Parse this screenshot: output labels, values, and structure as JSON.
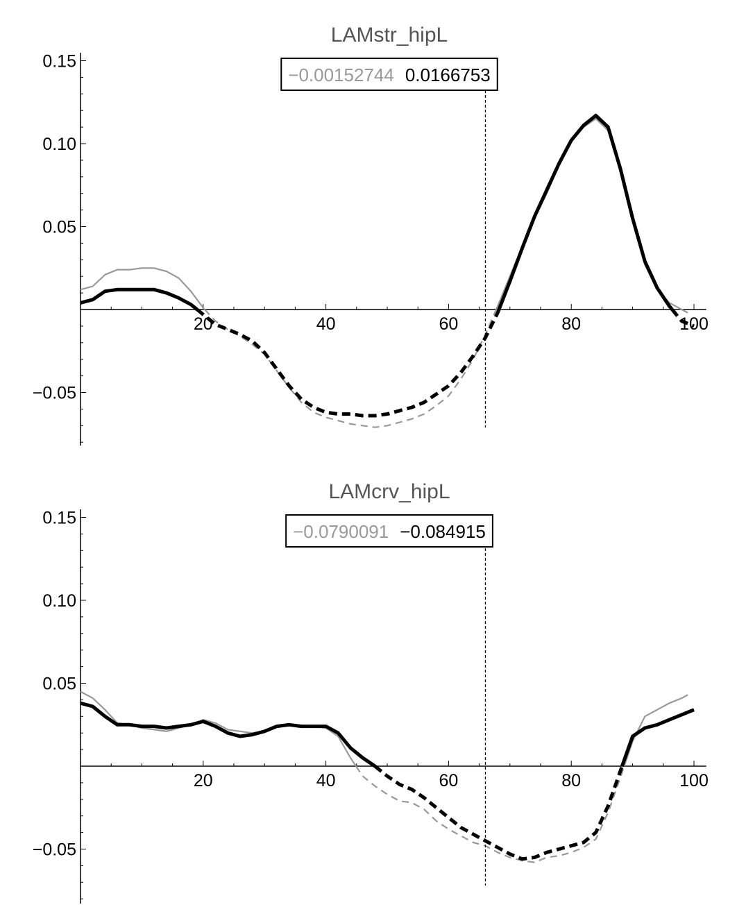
{
  "chart_data": [
    {
      "type": "line",
      "title": "LAMstr_hipL",
      "legend_box": {
        "gray_value": "−0.00152744",
        "black_value": "0.0166753",
        "gray_color": "#999999",
        "black_color": "#000000"
      },
      "xlim": [
        0,
        102
      ],
      "ylim": [
        -0.08,
        0.155
      ],
      "x_ticks": [
        "20",
        "40",
        "60",
        "80",
        "100"
      ],
      "y_ticks": [
        "0.15",
        "0.10",
        "0.05",
        "−0.05"
      ],
      "vline_x": 66,
      "series": [
        {
          "name": "gray",
          "color": "#999999",
          "x": [
            0,
            2,
            4,
            6,
            8,
            10,
            12,
            14,
            16,
            18,
            20,
            22,
            24,
            26,
            28,
            30,
            32,
            34,
            36,
            38,
            40,
            42,
            44,
            46,
            48,
            50,
            52,
            54,
            56,
            58,
            60,
            62,
            64,
            66,
            68,
            70,
            72,
            74,
            76,
            78,
            80,
            82,
            84,
            86,
            88,
            90,
            92,
            94,
            96,
            98,
            99
          ],
          "y": [
            0.012,
            0.014,
            0.021,
            0.024,
            0.024,
            0.025,
            0.025,
            0.023,
            0.019,
            0.011,
            0.001,
            -0.007,
            -0.012,
            -0.016,
            -0.021,
            -0.027,
            -0.037,
            -0.047,
            -0.056,
            -0.062,
            -0.065,
            -0.067,
            -0.069,
            -0.07,
            -0.071,
            -0.07,
            -0.068,
            -0.066,
            -0.063,
            -0.058,
            -0.052,
            -0.042,
            -0.03,
            -0.015,
            0.002,
            0.02,
            0.038,
            0.055,
            0.07,
            0.087,
            0.101,
            0.11,
            0.115,
            0.108,
            0.083,
            0.053,
            0.027,
            0.012,
            0.004,
            0.0,
            -0.002
          ]
        },
        {
          "name": "black",
          "color": "#000000",
          "x": [
            0,
            2,
            4,
            6,
            8,
            10,
            12,
            14,
            16,
            18,
            20,
            22,
            24,
            26,
            28,
            30,
            32,
            34,
            36,
            38,
            40,
            42,
            44,
            46,
            48,
            50,
            52,
            54,
            56,
            58,
            60,
            62,
            64,
            66,
            68,
            70,
            72,
            74,
            76,
            78,
            80,
            82,
            84,
            86,
            88,
            90,
            92,
            94,
            96,
            98,
            100
          ],
          "y": [
            0.004,
            0.006,
            0.011,
            0.012,
            0.012,
            0.012,
            0.012,
            0.01,
            0.007,
            0.003,
            -0.003,
            -0.009,
            -0.012,
            -0.015,
            -0.019,
            -0.026,
            -0.036,
            -0.046,
            -0.054,
            -0.059,
            -0.062,
            -0.063,
            -0.063,
            -0.064,
            -0.064,
            -0.063,
            -0.061,
            -0.059,
            -0.056,
            -0.051,
            -0.046,
            -0.038,
            -0.028,
            -0.017,
            -0.002,
            0.017,
            0.037,
            0.056,
            0.072,
            0.088,
            0.102,
            0.111,
            0.117,
            0.11,
            0.085,
            0.055,
            0.029,
            0.013,
            0.002,
            -0.007,
            -0.01
          ]
        }
      ]
    },
    {
      "type": "line",
      "title": "LAMcrv_hipL",
      "legend_box": {
        "gray_value": "−0.0790091",
        "black_value": "−0.084915",
        "gray_color": "#999999",
        "black_color": "#000000"
      },
      "xlim": [
        0,
        102
      ],
      "ylim": [
        -0.08,
        0.155
      ],
      "x_ticks": [
        "20",
        "40",
        "60",
        "80",
        "100"
      ],
      "y_ticks": [
        "0.15",
        "0.10",
        "0.05",
        "−0.05"
      ],
      "vline_x": 66,
      "series": [
        {
          "name": "gray",
          "color": "#999999",
          "x": [
            0,
            2,
            4,
            6,
            8,
            10,
            12,
            14,
            16,
            18,
            20,
            22,
            24,
            26,
            28,
            30,
            32,
            34,
            36,
            38,
            40,
            42,
            44,
            46,
            48,
            50,
            52,
            54,
            56,
            58,
            60,
            62,
            64,
            66,
            68,
            70,
            72,
            74,
            76,
            78,
            80,
            82,
            84,
            86,
            88,
            90,
            92,
            94,
            96,
            98,
            99
          ],
          "y": [
            0.045,
            0.041,
            0.034,
            0.026,
            0.025,
            0.023,
            0.022,
            0.021,
            0.023,
            0.025,
            0.028,
            0.026,
            0.022,
            0.021,
            0.02,
            0.021,
            0.024,
            0.025,
            0.024,
            0.024,
            0.023,
            0.018,
            0.005,
            -0.006,
            -0.012,
            -0.017,
            -0.021,
            -0.022,
            -0.026,
            -0.033,
            -0.038,
            -0.042,
            -0.046,
            -0.048,
            -0.052,
            -0.055,
            -0.057,
            -0.058,
            -0.055,
            -0.054,
            -0.052,
            -0.049,
            -0.044,
            -0.028,
            -0.007,
            0.015,
            0.03,
            0.034,
            0.038,
            0.041,
            0.043
          ]
        },
        {
          "name": "black",
          "color": "#000000",
          "x": [
            0,
            2,
            4,
            6,
            8,
            10,
            12,
            14,
            16,
            18,
            20,
            22,
            24,
            26,
            28,
            30,
            32,
            34,
            36,
            38,
            40,
            42,
            44,
            46,
            48,
            50,
            52,
            54,
            56,
            58,
            60,
            62,
            64,
            66,
            68,
            70,
            72,
            74,
            76,
            78,
            80,
            82,
            84,
            86,
            88,
            90,
            92,
            94,
            96,
            98,
            100
          ],
          "y": [
            0.038,
            0.036,
            0.03,
            0.025,
            0.025,
            0.024,
            0.024,
            0.023,
            0.024,
            0.025,
            0.027,
            0.024,
            0.02,
            0.018,
            0.019,
            0.021,
            0.024,
            0.025,
            0.024,
            0.024,
            0.024,
            0.02,
            0.011,
            0.005,
            0.0,
            -0.006,
            -0.011,
            -0.014,
            -0.019,
            -0.025,
            -0.031,
            -0.037,
            -0.041,
            -0.045,
            -0.049,
            -0.053,
            -0.056,
            -0.055,
            -0.052,
            -0.05,
            -0.048,
            -0.046,
            -0.04,
            -0.024,
            -0.003,
            0.018,
            0.023,
            0.025,
            0.028,
            0.031,
            0.034
          ]
        }
      ]
    }
  ]
}
